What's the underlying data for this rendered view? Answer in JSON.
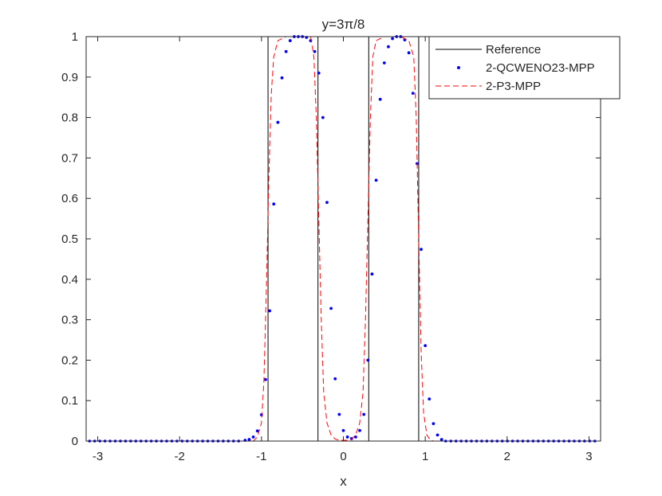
{
  "chart_data": {
    "type": "line",
    "title": "y=3π/8",
    "xlabel": "x",
    "ylabel": "",
    "xlim": [
      -3.14159,
      3.14159
    ],
    "ylim": [
      0,
      1
    ],
    "xticks": [
      -3,
      -2,
      -1,
      0,
      1,
      2,
      3
    ],
    "xtick_labels": [
      "-3",
      "-2",
      "-1",
      "0",
      "1",
      "2",
      "3"
    ],
    "yticks": [
      0,
      0.1,
      0.2,
      0.3,
      0.4,
      0.5,
      0.6,
      0.7,
      0.8,
      0.9,
      1
    ],
    "ytick_labels": [
      "0",
      "0.1",
      "0.2",
      "0.3",
      "0.4",
      "0.5",
      "0.6",
      "0.7",
      "0.8",
      "0.9",
      "1"
    ],
    "grid": false,
    "legend_location": "top-right",
    "series": [
      {
        "name": "Reference",
        "style": "solid",
        "color": "#000000",
        "x": [
          -3.14159,
          -0.92,
          -0.92,
          -0.31,
          -0.31,
          0.31,
          0.31,
          0.92,
          0.92,
          3.14159
        ],
        "y": [
          0,
          0,
          1,
          1,
          0,
          0,
          1,
          1,
          0,
          0
        ]
      },
      {
        "name": "2-QCWENO23-MPP",
        "style": "dots",
        "color": "#0000ff",
        "x": [
          -1.2,
          -1.15,
          -1.1,
          -1.05,
          -1.0,
          -0.95,
          -0.9,
          -0.85,
          -0.8,
          -0.75,
          -0.7,
          -0.65,
          -0.6,
          -0.55,
          -0.5,
          -0.45,
          -0.4,
          -0.35,
          -0.3,
          -0.25,
          -0.2,
          -0.15,
          -0.1,
          -0.05,
          0.0,
          0.05,
          0.1,
          0.15,
          0.2,
          0.25,
          0.3,
          0.35,
          0.4,
          0.45,
          0.5,
          0.55,
          0.6,
          0.65,
          0.7,
          0.75,
          0.8,
          0.85,
          0.9,
          0.95,
          1.0,
          1.05,
          1.1,
          1.15,
          1.2
        ],
        "y": [
          0.002,
          0.004,
          0.01,
          0.025,
          0.065,
          0.152,
          0.322,
          0.586,
          0.788,
          0.898,
          0.963,
          0.99,
          1.0,
          1.0,
          1.0,
          0.998,
          0.99,
          0.963,
          0.91,
          0.8,
          0.59,
          0.328,
          0.154,
          0.066,
          0.026,
          0.01,
          0.006,
          0.01,
          0.026,
          0.066,
          0.2,
          0.413,
          0.645,
          0.845,
          0.935,
          0.975,
          0.995,
          1.0,
          1.0,
          0.992,
          0.96,
          0.86,
          0.686,
          0.474,
          0.236,
          0.104,
          0.043,
          0.015,
          0.004
        ]
      },
      {
        "name": "2-P3-MPP",
        "style": "dashed",
        "color": "#ff0000",
        "x": [
          -3.14159,
          -1.1,
          -1.05,
          -1.0,
          -0.97,
          -0.94,
          -0.91,
          -0.88,
          -0.85,
          -0.8,
          -0.7,
          -0.6,
          -0.5,
          -0.4,
          -0.36,
          -0.33,
          -0.3,
          -0.27,
          -0.24,
          -0.2,
          -0.15,
          -0.1,
          -0.05,
          0.0,
          0.05,
          0.1,
          0.15,
          0.2,
          0.24,
          0.27,
          0.3,
          0.33,
          0.36,
          0.4,
          0.5,
          0.6,
          0.7,
          0.8,
          0.86,
          0.89,
          0.92,
          0.95,
          0.98,
          1.02,
          1.06,
          1.1,
          3.14159
        ],
        "y": [
          0,
          0,
          0.01,
          0.045,
          0.15,
          0.38,
          0.65,
          0.86,
          0.95,
          0.99,
          1.0,
          1.0,
          1.0,
          1.0,
          0.95,
          0.8,
          0.55,
          0.3,
          0.12,
          0.045,
          0.015,
          0.005,
          0.002,
          0.002,
          0.002,
          0.005,
          0.015,
          0.045,
          0.12,
          0.3,
          0.55,
          0.8,
          0.95,
          0.99,
          1.0,
          1.0,
          1.0,
          0.99,
          0.95,
          0.8,
          0.5,
          0.22,
          0.07,
          0.015,
          0.003,
          0,
          0
        ]
      }
    ]
  }
}
